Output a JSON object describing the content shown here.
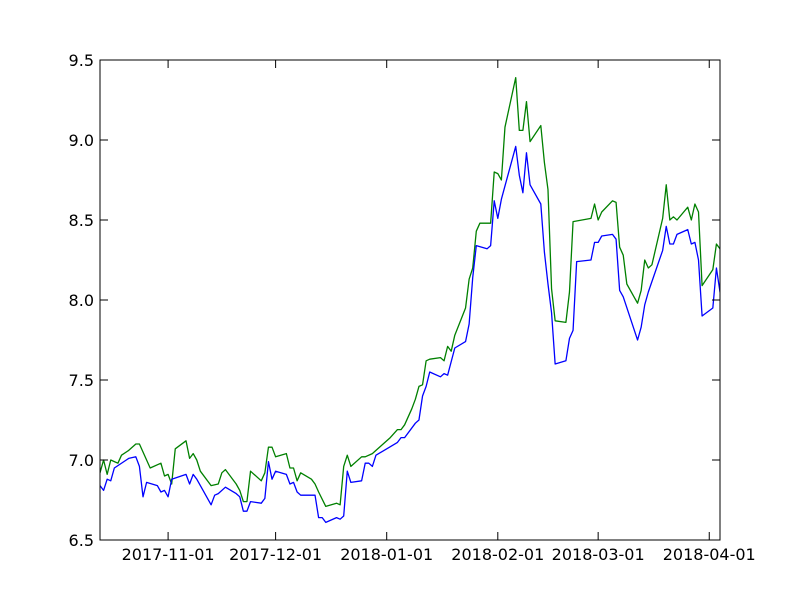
{
  "chart_data": {
    "type": "line",
    "title": "",
    "xlabel": "",
    "ylabel": "",
    "x_axis_type": "date",
    "xlim": [
      "2017-10-13",
      "2018-04-04"
    ],
    "ylim": [
      6.5,
      9.5
    ],
    "grid": false,
    "legend": "none",
    "yticks": [
      6.5,
      7.0,
      7.5,
      8.0,
      8.5,
      9.0,
      9.5
    ],
    "ytick_labels": [
      "6.5",
      "7.0",
      "7.5",
      "8.0",
      "8.5",
      "9.0",
      "9.5"
    ],
    "xticks": [
      "2017-11-01",
      "2017-12-01",
      "2018-01-01",
      "2018-02-01",
      "2018-03-01",
      "2018-04-01"
    ],
    "xtick_labels": [
      "2017-11-01",
      "2017-12-01",
      "2018-01-01",
      "2018-02-01",
      "2018-03-01",
      "2018-04-01"
    ],
    "series": [
      {
        "color": "#008000",
        "points": [
          [
            "2017-10-13",
            6.92
          ],
          [
            "2017-10-14",
            7.0
          ],
          [
            "2017-10-15",
            6.91
          ],
          [
            "2017-10-16",
            7.0
          ],
          [
            "2017-10-17",
            6.99
          ],
          [
            "2017-10-18",
            6.98
          ],
          [
            "2017-10-19",
            7.03
          ],
          [
            "2017-10-21",
            7.06
          ],
          [
            "2017-10-23",
            7.1
          ],
          [
            "2017-10-24",
            7.1
          ],
          [
            "2017-10-27",
            6.95
          ],
          [
            "2017-10-30",
            6.98
          ],
          [
            "2017-10-31",
            6.9
          ],
          [
            "2017-11-01",
            6.91
          ],
          [
            "2017-11-02",
            6.85
          ],
          [
            "2017-11-03",
            7.07
          ],
          [
            "2017-11-06",
            7.12
          ],
          [
            "2017-11-07",
            7.01
          ],
          [
            "2017-11-08",
            7.04
          ],
          [
            "2017-11-09",
            7.0
          ],
          [
            "2017-11-10",
            6.93
          ],
          [
            "2017-11-13",
            6.84
          ],
          [
            "2017-11-15",
            6.85
          ],
          [
            "2017-11-16",
            6.92
          ],
          [
            "2017-11-17",
            6.94
          ],
          [
            "2017-11-20",
            6.85
          ],
          [
            "2017-11-21",
            6.81
          ],
          [
            "2017-11-22",
            6.74
          ],
          [
            "2017-11-23",
            6.74
          ],
          [
            "2017-11-24",
            6.93
          ],
          [
            "2017-11-27",
            6.87
          ],
          [
            "2017-11-28",
            6.92
          ],
          [
            "2017-11-29",
            7.08
          ],
          [
            "2017-11-30",
            7.08
          ],
          [
            "2017-12-01",
            7.02
          ],
          [
            "2017-12-04",
            7.04
          ],
          [
            "2017-12-05",
            6.95
          ],
          [
            "2017-12-06",
            6.95
          ],
          [
            "2017-12-07",
            6.87
          ],
          [
            "2017-12-08",
            6.92
          ],
          [
            "2017-12-11",
            6.88
          ],
          [
            "2017-12-12",
            6.85
          ],
          [
            "2017-12-13",
            6.8
          ],
          [
            "2017-12-15",
            6.71
          ],
          [
            "2017-12-18",
            6.73
          ],
          [
            "2017-12-19",
            6.72
          ],
          [
            "2017-12-20",
            6.96
          ],
          [
            "2017-12-21",
            7.03
          ],
          [
            "2017-12-22",
            6.96
          ],
          [
            "2017-12-25",
            7.02
          ],
          [
            "2017-12-26",
            7.02
          ],
          [
            "2017-12-28",
            7.04
          ],
          [
            "2017-12-29",
            7.06
          ],
          [
            "2018-01-02",
            7.14
          ],
          [
            "2018-01-04",
            7.19
          ],
          [
            "2018-01-05",
            7.19
          ],
          [
            "2018-01-06",
            7.22
          ],
          [
            "2018-01-08",
            7.32
          ],
          [
            "2018-01-09",
            7.38
          ],
          [
            "2018-01-10",
            7.46
          ],
          [
            "2018-01-11",
            7.47
          ],
          [
            "2018-01-12",
            7.62
          ],
          [
            "2018-01-13",
            7.63
          ],
          [
            "2018-01-16",
            7.64
          ],
          [
            "2018-01-17",
            7.62
          ],
          [
            "2018-01-18",
            7.71
          ],
          [
            "2018-01-19",
            7.68
          ],
          [
            "2018-01-20",
            7.78
          ],
          [
            "2018-01-23",
            7.95
          ],
          [
            "2018-01-24",
            8.13
          ],
          [
            "2018-01-25",
            8.2
          ],
          [
            "2018-01-26",
            8.43
          ],
          [
            "2018-01-27",
            8.48
          ],
          [
            "2018-01-30",
            8.48
          ],
          [
            "2018-01-31",
            8.8
          ],
          [
            "2018-02-01",
            8.79
          ],
          [
            "2018-02-02",
            8.75
          ],
          [
            "2018-02-03",
            9.08
          ],
          [
            "2018-02-06",
            9.39
          ],
          [
            "2018-02-07",
            9.06
          ],
          [
            "2018-02-08",
            9.06
          ],
          [
            "2018-02-09",
            9.24
          ],
          [
            "2018-02-10",
            8.99
          ],
          [
            "2018-02-13",
            9.09
          ],
          [
            "2018-02-14",
            8.86
          ],
          [
            "2018-02-15",
            8.69
          ],
          [
            "2018-02-16",
            8.07
          ],
          [
            "2018-02-17",
            7.87
          ],
          [
            "2018-02-20",
            7.86
          ],
          [
            "2018-02-21",
            8.05
          ],
          [
            "2018-02-22",
            8.49
          ],
          [
            "2018-02-27",
            8.51
          ],
          [
            "2018-02-28",
            8.6
          ],
          [
            "2018-03-01",
            8.5
          ],
          [
            "2018-03-02",
            8.55
          ],
          [
            "2018-03-05",
            8.62
          ],
          [
            "2018-03-06",
            8.61
          ],
          [
            "2018-03-07",
            8.33
          ],
          [
            "2018-03-08",
            8.28
          ],
          [
            "2018-03-09",
            8.1
          ],
          [
            "2018-03-12",
            7.98
          ],
          [
            "2018-03-13",
            8.06
          ],
          [
            "2018-03-14",
            8.25
          ],
          [
            "2018-03-15",
            8.2
          ],
          [
            "2018-03-16",
            8.22
          ],
          [
            "2018-03-19",
            8.51
          ],
          [
            "2018-03-20",
            8.72
          ],
          [
            "2018-03-21",
            8.5
          ],
          [
            "2018-03-22",
            8.52
          ],
          [
            "2018-03-23",
            8.5
          ],
          [
            "2018-03-26",
            8.58
          ],
          [
            "2018-03-27",
            8.5
          ],
          [
            "2018-03-28",
            8.6
          ],
          [
            "2018-03-29",
            8.55
          ],
          [
            "2018-03-30",
            8.09
          ],
          [
            "2018-04-02",
            8.19
          ],
          [
            "2018-04-03",
            8.35
          ],
          [
            "2018-04-04",
            8.32
          ],
          [
            "2018-04-05",
            8.17
          ],
          [
            "2018-04-10",
            8.14
          ],
          [
            "2018-04-11",
            8.17
          ]
        ]
      },
      {
        "color": "#0000ff",
        "points": [
          [
            "2017-10-13",
            6.84
          ],
          [
            "2017-10-14",
            6.81
          ],
          [
            "2017-10-15",
            6.88
          ],
          [
            "2017-10-16",
            6.87
          ],
          [
            "2017-10-17",
            6.95
          ],
          [
            "2017-10-21",
            7.01
          ],
          [
            "2017-10-23",
            7.02
          ],
          [
            "2017-10-24",
            6.96
          ],
          [
            "2017-10-25",
            6.77
          ],
          [
            "2017-10-26",
            6.86
          ],
          [
            "2017-10-29",
            6.84
          ],
          [
            "2017-10-30",
            6.8
          ],
          [
            "2017-10-31",
            6.81
          ],
          [
            "2017-11-01",
            6.77
          ],
          [
            "2017-11-02",
            6.88
          ],
          [
            "2017-11-06",
            6.91
          ],
          [
            "2017-11-07",
            6.85
          ],
          [
            "2017-11-08",
            6.91
          ],
          [
            "2017-11-09",
            6.88
          ],
          [
            "2017-11-10",
            6.84
          ],
          [
            "2017-11-13",
            6.72
          ],
          [
            "2017-11-14",
            6.78
          ],
          [
            "2017-11-15",
            6.79
          ],
          [
            "2017-11-17",
            6.83
          ],
          [
            "2017-11-20",
            6.79
          ],
          [
            "2017-11-21",
            6.77
          ],
          [
            "2017-11-22",
            6.68
          ],
          [
            "2017-11-23",
            6.68
          ],
          [
            "2017-11-24",
            6.74
          ],
          [
            "2017-11-27",
            6.73
          ],
          [
            "2017-11-28",
            6.76
          ],
          [
            "2017-11-29",
            6.99
          ],
          [
            "2017-11-30",
            6.88
          ],
          [
            "2017-12-01",
            6.93
          ],
          [
            "2017-12-04",
            6.91
          ],
          [
            "2017-12-05",
            6.85
          ],
          [
            "2017-12-06",
            6.86
          ],
          [
            "2017-12-07",
            6.8
          ],
          [
            "2017-12-08",
            6.78
          ],
          [
            "2017-12-11",
            6.78
          ],
          [
            "2017-12-12",
            6.78
          ],
          [
            "2017-12-13",
            6.64
          ],
          [
            "2017-12-14",
            6.64
          ],
          [
            "2017-12-15",
            6.61
          ],
          [
            "2017-12-18",
            6.64
          ],
          [
            "2017-12-19",
            6.63
          ],
          [
            "2017-12-20",
            6.65
          ],
          [
            "2017-12-21",
            6.93
          ],
          [
            "2017-12-22",
            6.86
          ],
          [
            "2017-12-25",
            6.87
          ],
          [
            "2017-12-26",
            6.98
          ],
          [
            "2017-12-27",
            6.98
          ],
          [
            "2017-12-28",
            6.96
          ],
          [
            "2017-12-29",
            7.03
          ],
          [
            "2018-01-04",
            7.11
          ],
          [
            "2018-01-05",
            7.14
          ],
          [
            "2018-01-06",
            7.14
          ],
          [
            "2018-01-09",
            7.23
          ],
          [
            "2018-01-10",
            7.25
          ],
          [
            "2018-01-11",
            7.4
          ],
          [
            "2018-01-12",
            7.46
          ],
          [
            "2018-01-13",
            7.55
          ],
          [
            "2018-01-16",
            7.52
          ],
          [
            "2018-01-17",
            7.54
          ],
          [
            "2018-01-18",
            7.53
          ],
          [
            "2018-01-20",
            7.7
          ],
          [
            "2018-01-23",
            7.74
          ],
          [
            "2018-01-24",
            7.85
          ],
          [
            "2018-01-25",
            8.14
          ],
          [
            "2018-01-26",
            8.34
          ],
          [
            "2018-01-29",
            8.32
          ],
          [
            "2018-01-30",
            8.34
          ],
          [
            "2018-01-31",
            8.62
          ],
          [
            "2018-02-01",
            8.51
          ],
          [
            "2018-02-02",
            8.63
          ],
          [
            "2018-02-06",
            8.96
          ],
          [
            "2018-02-07",
            8.78
          ],
          [
            "2018-02-08",
            8.67
          ],
          [
            "2018-02-09",
            8.92
          ],
          [
            "2018-02-10",
            8.72
          ],
          [
            "2018-02-13",
            8.6
          ],
          [
            "2018-02-14",
            8.3
          ],
          [
            "2018-02-15",
            8.1
          ],
          [
            "2018-02-16",
            7.92
          ],
          [
            "2018-02-17",
            7.6
          ],
          [
            "2018-02-20",
            7.62
          ],
          [
            "2018-02-21",
            7.76
          ],
          [
            "2018-02-22",
            7.81
          ],
          [
            "2018-02-23",
            8.24
          ],
          [
            "2018-02-27",
            8.25
          ],
          [
            "2018-02-28",
            8.36
          ],
          [
            "2018-03-01",
            8.36
          ],
          [
            "2018-03-02",
            8.4
          ],
          [
            "2018-03-05",
            8.41
          ],
          [
            "2018-03-06",
            8.38
          ],
          [
            "2018-03-07",
            8.06
          ],
          [
            "2018-03-08",
            8.02
          ],
          [
            "2018-03-12",
            7.75
          ],
          [
            "2018-03-13",
            7.83
          ],
          [
            "2018-03-14",
            7.97
          ],
          [
            "2018-03-15",
            8.05
          ],
          [
            "2018-03-19",
            8.31
          ],
          [
            "2018-03-20",
            8.46
          ],
          [
            "2018-03-21",
            8.35
          ],
          [
            "2018-03-22",
            8.35
          ],
          [
            "2018-03-23",
            8.41
          ],
          [
            "2018-03-26",
            8.44
          ],
          [
            "2018-03-27",
            8.35
          ],
          [
            "2018-03-28",
            8.36
          ],
          [
            "2018-03-29",
            8.25
          ],
          [
            "2018-03-30",
            7.9
          ],
          [
            "2018-04-02",
            7.95
          ],
          [
            "2018-04-03",
            8.2
          ],
          [
            "2018-04-04",
            8.05
          ],
          [
            "2018-04-05",
            7.96
          ],
          [
            "2018-04-10",
            7.97
          ],
          [
            "2018-04-11",
            7.8
          ]
        ]
      }
    ]
  }
}
